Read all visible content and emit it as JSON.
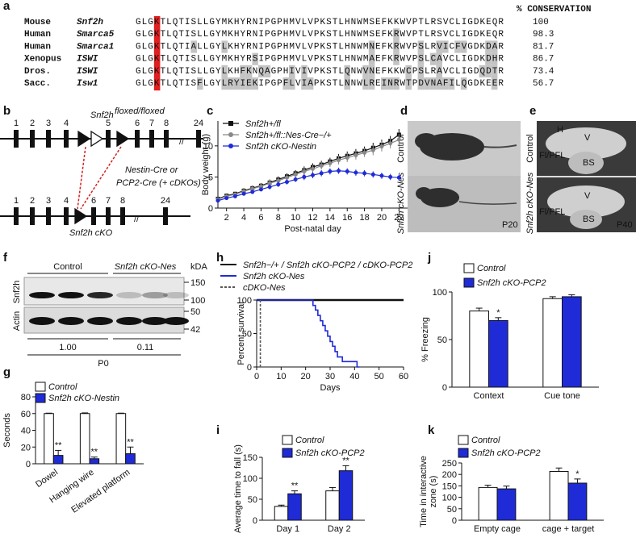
{
  "panel_labels": [
    "a",
    "b",
    "c",
    "d",
    "e",
    "f",
    "g",
    "h",
    "i",
    "j",
    "k"
  ],
  "alignment": {
    "header": "% CONSERVATION",
    "rows": [
      {
        "species": "Mouse",
        "gene": "Snf2h",
        "sequence": "GLGKTLQTISLLGYMKHYRNIPGPHMVLVPKSTLHNWMSEFKKWVPTLRSVCLIGDKEQR",
        "conservation": "100"
      },
      {
        "species": "Human",
        "gene": "Smarca5",
        "sequence": "GLGKTLQTISLLGYMKHYRNIPGPHMVLVPKSTLHNWMSEFKRWVPTLRSVCLIGDKEQR",
        "conservation": "98.3"
      },
      {
        "species": "Human",
        "gene": "Smarca1",
        "sequence": "GLGKTLQTIALLGYLKHYRNIPGPHMVLVPKSTLHNWMNEFKRWVPSLRVICFVGDKDAR",
        "conservation": "81.7"
      },
      {
        "species": "Xenopus",
        "gene": "ISWI",
        "sequence": "GLGKTLQTISLLGYMKHYRSIPGPHMVLVPKSTLHNWMAEFKRWVPSLCAVCLIGDKDHR",
        "conservation": "86.7"
      },
      {
        "species": "Dros.",
        "gene": "ISWI",
        "sequence": "GLGKTLQTISLLGYLKHFKNQAGPHIVIVPKSTLQNWVNEFKKWCPSLRAVCLIGDQDTR",
        "conservation": "73.4"
      },
      {
        "species": "Sacc.",
        "gene": "Isw1",
        "sequence": "GLGKTLQTISFLGYLRYIEKIPGPFLVIAPKSTLNNWLREINRWTPDVNAFILQGDKEER",
        "conservation": "56.7"
      }
    ]
  },
  "schematic": {
    "allele": "Snf2h",
    "allele_sup": "floxed/floxed",
    "top_exons": [
      "1",
      "2",
      "3",
      "4",
      "5",
      "6",
      "7",
      "8",
      "24"
    ],
    "cre_lines": [
      "Nestin-Cre or",
      "PCP2-Cre (+ cDKOs)"
    ],
    "bottom_exons": [
      "1",
      "2",
      "3",
      "4",
      "6",
      "7",
      "8",
      "24"
    ],
    "ko_label": "Snf2h cKO"
  },
  "photo_d": {
    "labels": [
      "Control",
      "Snf2h cKO-Nes"
    ],
    "age": "P20"
  },
  "photo_e": {
    "labels": [
      "Control",
      "Snf2h cKO-Nes"
    ],
    "regions_top": [
      "H",
      "V",
      "Fl/PFL",
      "BS"
    ],
    "regions_bottom": [
      "V",
      "Fl/PFL",
      "BS"
    ],
    "age": "P40"
  },
  "blot": {
    "groups": [
      "Control",
      "Snf2h cKO-Nes"
    ],
    "unit": "kDA",
    "proteins": [
      "Snf2h",
      "Actin"
    ],
    "markers": [
      "150",
      "100",
      "50",
      "42"
    ],
    "ratios": [
      "1.00",
      "0.11"
    ],
    "age": "P0"
  },
  "chart_data": [
    {
      "type": "line",
      "x_label": "Post-natal day",
      "y_label": "Body weight (g)",
      "x": [
        1,
        2,
        3,
        4,
        5,
        6,
        7,
        8,
        9,
        10,
        11,
        12,
        13,
        14,
        15,
        16,
        17,
        18,
        19,
        20,
        21,
        22
      ],
      "xlim": [
        1,
        23
      ],
      "xticks": [
        2,
        4,
        6,
        8,
        10,
        12,
        14,
        16,
        18,
        20,
        22
      ],
      "ylim": [
        0,
        14
      ],
      "yticks": [
        0,
        5,
        10
      ],
      "series": [
        {
          "name": "Snf2h+/fl",
          "color": "#111111",
          "marker": "square",
          "values": [
            1.5,
            2.0,
            2.3,
            2.8,
            3.2,
            3.6,
            4.1,
            4.6,
            5.1,
            5.6,
            6.1,
            6.6,
            7.0,
            7.5,
            8.0,
            8.4,
            8.8,
            9.2,
            9.7,
            10.2,
            10.8,
            11.8
          ],
          "errors": [
            0.3,
            0.3,
            0.3,
            0.4,
            0.4,
            0.4,
            0.5,
            0.5,
            0.5,
            0.5,
            0.6,
            0.6,
            0.6,
            0.6,
            0.7,
            0.7,
            0.7,
            0.7,
            0.8,
            0.8,
            0.8,
            0.9
          ]
        },
        {
          "name": "Snf2h+/fl::Nes-Cre−/+",
          "color": "#888888",
          "marker": "circle",
          "values": [
            1.4,
            1.9,
            2.2,
            2.7,
            3.1,
            3.5,
            4.0,
            4.4,
            4.9,
            5.4,
            5.9,
            6.3,
            6.8,
            7.2,
            7.7,
            8.1,
            8.5,
            8.9,
            9.3,
            9.9,
            10.4,
            11.0
          ],
          "errors": [
            0.3,
            0.3,
            0.3,
            0.4,
            0.4,
            0.4,
            0.5,
            0.5,
            0.5,
            0.5,
            0.6,
            0.6,
            0.6,
            0.6,
            0.7,
            0.7,
            0.7,
            0.7,
            0.8,
            0.8,
            0.8,
            0.9
          ]
        },
        {
          "name": "Snf2h cKO-Nestin",
          "color": "#1f2bd6",
          "marker": "circle",
          "values": [
            1.2,
            1.6,
            1.9,
            2.3,
            2.6,
            3.0,
            3.4,
            3.8,
            4.2,
            4.6,
            5.0,
            5.3,
            5.6,
            5.9,
            6.0,
            5.9,
            5.7,
            5.6,
            5.4,
            5.2,
            5.0,
            4.9
          ],
          "errors": [
            0.2,
            0.2,
            0.3,
            0.3,
            0.3,
            0.3,
            0.4,
            0.4,
            0.4,
            0.4,
            0.5,
            0.5,
            0.5,
            0.5,
            0.5,
            0.5,
            0.5,
            0.5,
            0.5,
            0.5,
            0.5,
            0.5
          ]
        }
      ]
    },
    {
      "type": "bar",
      "y_label": "Seconds",
      "categories": [
        "Dowel",
        "Hanging wire",
        "Elevated platform"
      ],
      "ylim": [
        0,
        80
      ],
      "yticks": [
        0,
        20,
        40,
        60,
        80
      ],
      "series": [
        {
          "name": "Control",
          "color": "#ffffff",
          "values": [
            60,
            60,
            60
          ],
          "errors": [
            0.5,
            0.8,
            0.5
          ]
        },
        {
          "name": "Snf2h cKO-Nestin",
          "color": "#1f2bd6",
          "values": [
            10,
            6,
            12
          ],
          "errors": [
            6,
            2,
            8
          ],
          "significance": [
            "**",
            "**",
            "**"
          ]
        }
      ]
    },
    {
      "type": "step",
      "x_label": "Days",
      "y_label": "Percent survival",
      "xlim": [
        0,
        60
      ],
      "xticks": [
        0,
        10,
        20,
        30,
        40,
        50,
        60
      ],
      "ylim": [
        0,
        100
      ],
      "yticks": [
        0,
        50,
        100
      ],
      "series": [
        {
          "name": "Snf2h−/+ / Snf2h cKO-PCP2 / cDKO-PCP2",
          "color": "#111111",
          "dashed": false,
          "x": [
            0,
            60
          ],
          "values": [
            100,
            100
          ]
        },
        {
          "name": "Snf2h cKO-Nes",
          "color": "#1f2bd6",
          "dashed": false,
          "x": [
            0,
            23,
            23,
            24,
            24,
            25,
            25,
            26,
            26,
            27,
            27,
            28,
            28,
            29,
            29,
            30,
            30,
            31,
            31,
            32,
            32,
            33,
            33,
            35,
            35,
            41,
            41,
            42
          ],
          "values": [
            100,
            100,
            92,
            92,
            85,
            85,
            77,
            77,
            69,
            69,
            62,
            62,
            54,
            54,
            46,
            46,
            38,
            38,
            31,
            31,
            23,
            23,
            15,
            15,
            8,
            8,
            0,
            0
          ]
        },
        {
          "name": "cDKO-Nes",
          "color": "#555555",
          "dashed": true,
          "x": [
            1.5,
            1.5
          ],
          "values": [
            100,
            0
          ]
        }
      ]
    },
    {
      "type": "bar",
      "y_label": "Average time to fall (s)",
      "categories": [
        "Day 1",
        "Day 2"
      ],
      "ylim": [
        0,
        150
      ],
      "yticks": [
        0,
        50,
        100,
        150
      ],
      "series": [
        {
          "name": "Control",
          "color": "#ffffff",
          "values": [
            33,
            70
          ],
          "errors": [
            3,
            8
          ]
        },
        {
          "name": "Snf2h cKO-PCP2",
          "color": "#1f2bd6",
          "values": [
            63,
            118
          ],
          "errors": [
            7,
            12
          ],
          "significance": [
            "**",
            "**"
          ]
        }
      ]
    },
    {
      "type": "bar",
      "y_label": "% Freezing",
      "categories": [
        "Context",
        "Cue tone"
      ],
      "ylim": [
        0,
        100
      ],
      "yticks": [
        0,
        50,
        100
      ],
      "series": [
        {
          "name": "Control",
          "color": "#ffffff",
          "values": [
            80,
            93
          ],
          "errors": [
            3,
            2
          ]
        },
        {
          "name": "Snf2h cKO-PCP2",
          "color": "#1f2bd6",
          "values": [
            70,
            95
          ],
          "errors": [
            3,
            2
          ],
          "significance": [
            "*",
            null
          ]
        }
      ]
    },
    {
      "type": "bar",
      "y_label": "Time in interactive zone (s)",
      "categories": [
        "Empty cage",
        "cage + target"
      ],
      "ylim": [
        0,
        250
      ],
      "yticks": [
        0,
        50,
        100,
        150,
        200,
        250
      ],
      "series": [
        {
          "name": "Control",
          "color": "#ffffff",
          "values": [
            143,
            213
          ],
          "errors": [
            10,
            15
          ]
        },
        {
          "name": "Snf2h cKO-PCP2",
          "color": "#1f2bd6",
          "values": [
            137,
            162
          ],
          "errors": [
            12,
            18
          ],
          "significance": [
            null,
            "*"
          ]
        }
      ]
    }
  ]
}
